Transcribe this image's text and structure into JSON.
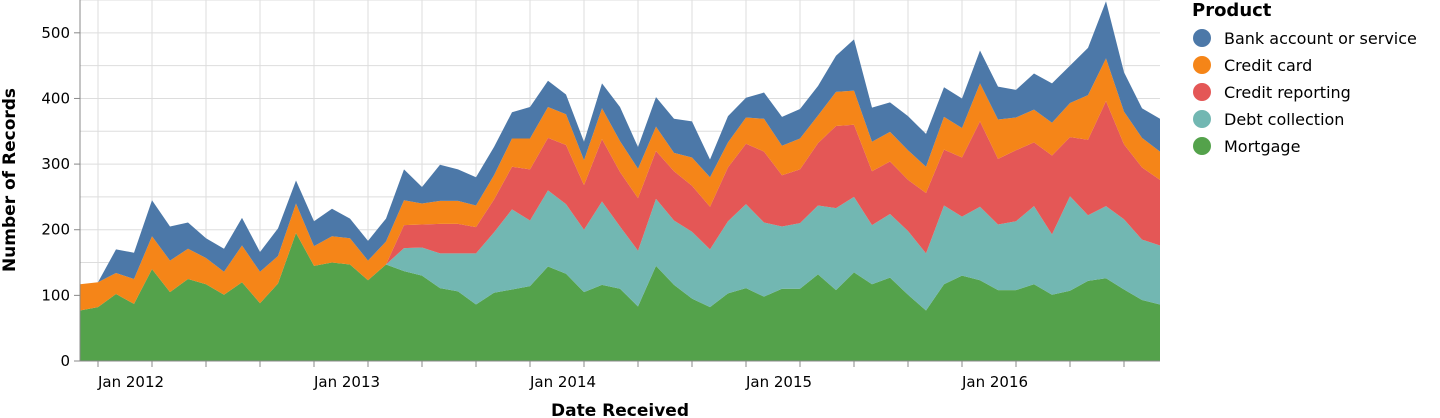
{
  "chart_data": {
    "type": "area",
    "stacked": true,
    "xlabel": "Date Received",
    "ylabel": "Number of Records",
    "ylim": [
      0,
      550
    ],
    "y_ticks": [
      0,
      100,
      200,
      300,
      400,
      500
    ],
    "x_start": "2011-12",
    "x_end": "2016-12",
    "x_tick_labels": [
      "Jan 2012",
      "Jan 2013",
      "Jan 2014",
      "Jan 2015",
      "Jan 2016"
    ],
    "grid": true,
    "legend_title": "Product",
    "legend_position": "right",
    "x": [
      "2011-12",
      "2012-01",
      "2012-02",
      "2012-03",
      "2012-04",
      "2012-05",
      "2012-06",
      "2012-07",
      "2012-08",
      "2012-09",
      "2012-10",
      "2012-11",
      "2012-12",
      "2013-01",
      "2013-02",
      "2013-03",
      "2013-04",
      "2013-05",
      "2013-06",
      "2013-07",
      "2013-08",
      "2013-09",
      "2013-10",
      "2013-11",
      "2013-12",
      "2014-01",
      "2014-02",
      "2014-03",
      "2014-04",
      "2014-05",
      "2014-06",
      "2014-07",
      "2014-08",
      "2014-09",
      "2014-10",
      "2014-11",
      "2014-12",
      "2015-01",
      "2015-02",
      "2015-03",
      "2015-04",
      "2015-05",
      "2015-06",
      "2015-07",
      "2015-08",
      "2015-09",
      "2015-10",
      "2015-11",
      "2015-12",
      "2016-01",
      "2016-02",
      "2016-03",
      "2016-04",
      "2016-05",
      "2016-06",
      "2016-07",
      "2016-08",
      "2016-09",
      "2016-10",
      "2016-11",
      "2016-12"
    ],
    "series": [
      {
        "name": "Mortgage",
        "color": "#54a24b",
        "values": [
          77,
          82,
          102,
          87,
          140,
          105,
          125,
          117,
          101,
          120,
          88,
          118,
          195,
          145,
          150,
          147,
          123,
          147,
          137,
          130,
          111,
          106,
          86,
          104,
          109,
          114,
          144,
          133,
          105,
          116,
          110,
          83,
          145,
          116,
          95,
          82,
          103,
          111,
          98,
          110,
          110,
          132,
          108,
          135,
          117,
          127,
          101,
          77,
          117,
          130,
          123,
          108,
          108,
          117,
          101,
          107,
          122,
          126,
          109,
          93,
          86
        ]
      },
      {
        "name": "Debt collection",
        "color": "#72b7b2",
        "values": [
          0,
          0,
          0,
          0,
          0,
          0,
          0,
          0,
          0,
          0,
          0,
          0,
          0,
          0,
          0,
          0,
          0,
          0,
          35,
          43,
          53,
          58,
          78,
          92,
          122,
          100,
          116,
          106,
          95,
          127,
          95,
          85,
          102,
          98,
          102,
          88,
          110,
          128,
          113,
          95,
          100,
          105,
          125,
          115,
          90,
          97,
          97,
          87,
          120,
          90,
          112,
          100,
          105,
          119,
          92,
          144,
          100,
          110,
          107,
          92,
          90
        ]
      },
      {
        "name": "Credit reporting",
        "color": "#e45756",
        "values": [
          0,
          0,
          0,
          0,
          0,
          0,
          0,
          0,
          0,
          0,
          0,
          0,
          0,
          0,
          0,
          0,
          0,
          0,
          35,
          35,
          45,
          45,
          40,
          50,
          65,
          78,
          80,
          90,
          68,
          95,
          83,
          80,
          73,
          75,
          70,
          65,
          82,
          92,
          108,
          78,
          82,
          95,
          125,
          110,
          82,
          80,
          78,
          92,
          85,
          90,
          130,
          100,
          108,
          97,
          120,
          90,
          115,
          160,
          114,
          110,
          100
        ]
      },
      {
        "name": "Credit card",
        "color": "#f58518",
        "values": [
          40,
          38,
          32,
          38,
          50,
          48,
          46,
          40,
          35,
          56,
          48,
          42,
          45,
          30,
          40,
          40,
          30,
          35,
          38,
          32,
          35,
          35,
          33,
          37,
          43,
          47,
          47,
          47,
          38,
          47,
          47,
          45,
          37,
          28,
          43,
          45,
          38,
          40,
          50,
          45,
          47,
          42,
          52,
          52,
          45,
          45,
          45,
          40,
          50,
          45,
          58,
          60,
          50,
          50,
          50,
          52,
          68,
          65,
          50,
          45,
          43
        ]
      },
      {
        "name": "Bank account or service",
        "color": "#4c78a8",
        "values": [
          0,
          0,
          36,
          40,
          55,
          52,
          40,
          30,
          35,
          42,
          30,
          42,
          35,
          38,
          42,
          30,
          30,
          35,
          47,
          25,
          55,
          48,
          43,
          43,
          40,
          48,
          40,
          30,
          28,
          38,
          52,
          33,
          45,
          52,
          55,
          27,
          40,
          30,
          40,
          44,
          45,
          45,
          55,
          78,
          52,
          45,
          52,
          50,
          45,
          45,
          50,
          50,
          42,
          55,
          60,
          57,
          72,
          87,
          60,
          45,
          50
        ]
      }
    ]
  }
}
